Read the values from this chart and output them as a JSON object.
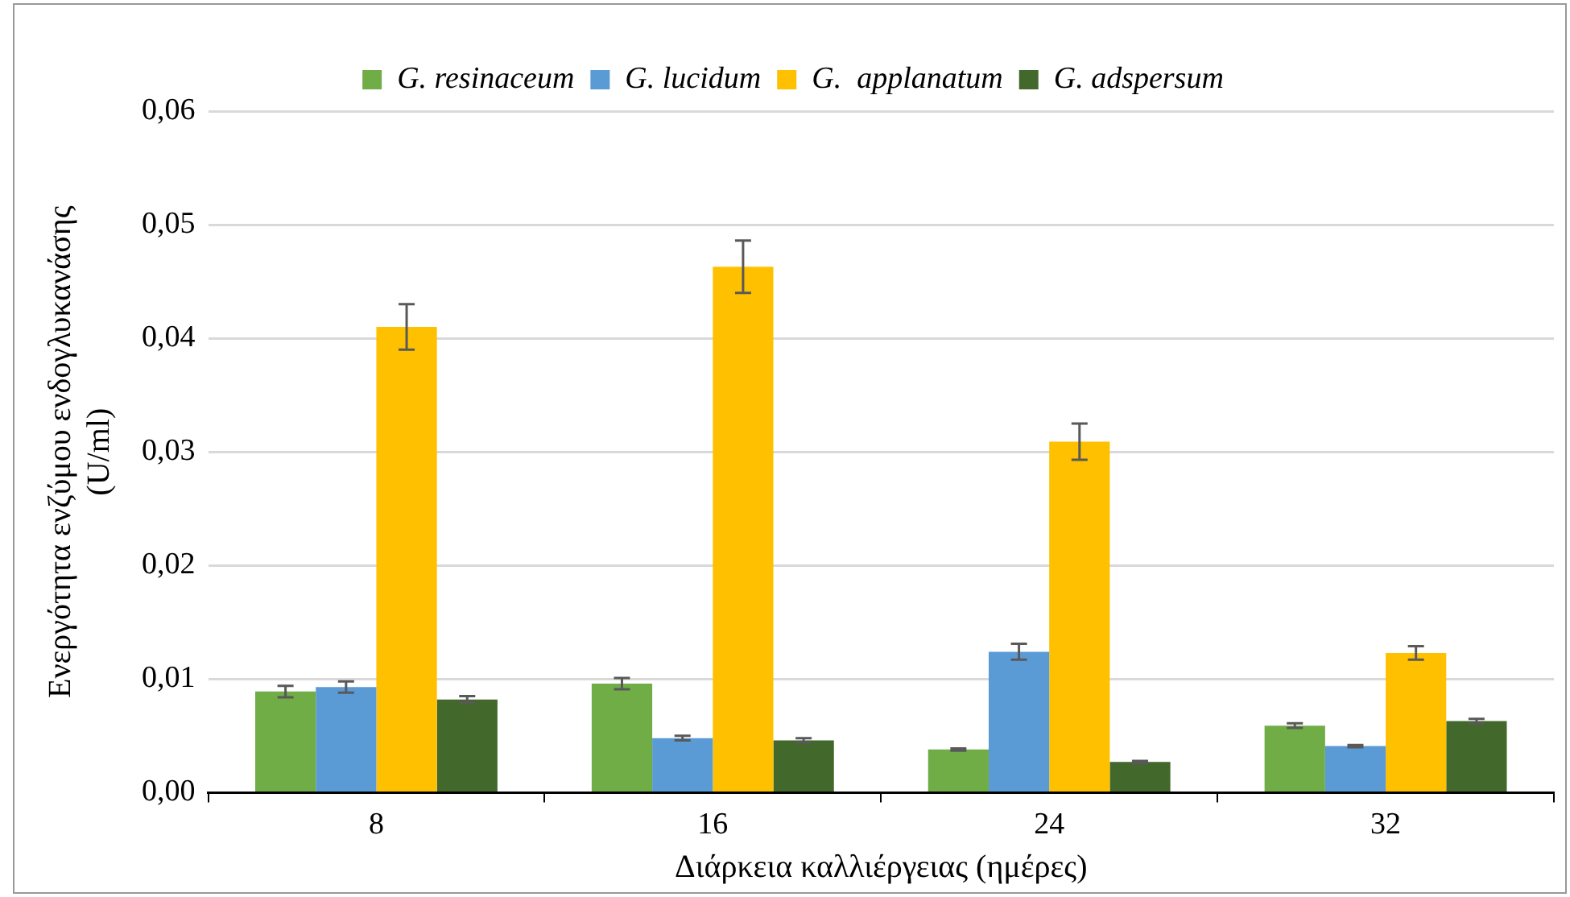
{
  "chart_data": {
    "type": "bar",
    "xlabel": "Διάρκεια καλλιέργειας (ημέρες)",
    "ylabel": "Ενεργότητα ενζύμου ενδογλυκανάσης (U/ml)",
    "categories": [
      "8",
      "16",
      "24",
      "32"
    ],
    "series": [
      {
        "name": "G. resinaceum",
        "color": "#70ad47",
        "values": [
          0.0089,
          0.0096,
          0.0038,
          0.0059
        ],
        "errors": [
          0.0005,
          0.0005,
          0.0001,
          0.0002
        ]
      },
      {
        "name": "G. lucidum",
        "color": "#5b9bd5",
        "values": [
          0.0093,
          0.0048,
          0.0124,
          0.0041
        ],
        "errors": [
          0.0005,
          0.0002,
          0.0007,
          0.0001
        ]
      },
      {
        "name": "G.  applanatum",
        "color": "#ffc000",
        "values": [
          0.041,
          0.0463,
          0.0309,
          0.0123
        ],
        "errors": [
          0.002,
          0.0023,
          0.0016,
          0.0006
        ]
      },
      {
        "name": "G. adspersum",
        "color": "#43682b",
        "values": [
          0.0082,
          0.0046,
          0.0027,
          0.0063
        ],
        "errors": [
          0.0003,
          0.0002,
          0.0001,
          0.0002
        ]
      }
    ],
    "ylim": [
      0,
      0.06
    ],
    "yticks": [
      {
        "value": 0,
        "label": "0,00"
      },
      {
        "value": 0.01,
        "label": "0,01"
      },
      {
        "value": 0.02,
        "label": "0,02"
      },
      {
        "value": 0.03,
        "label": "0,03"
      },
      {
        "value": 0.04,
        "label": "0,04"
      },
      {
        "value": 0.05,
        "label": "0,05"
      },
      {
        "value": 0.06,
        "label": "0,06"
      }
    ],
    "grid": "y",
    "legend": "top"
  }
}
